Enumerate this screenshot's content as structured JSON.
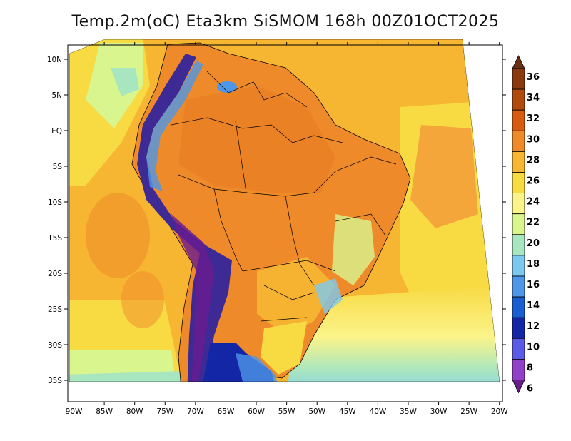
{
  "title": "Temp.2m(oC) Eta3km SiSMOM 168h 00Z01OCT2025",
  "map": {
    "lon_range": [
      -91,
      -19.5
    ],
    "lat_range": [
      -38,
      12
    ],
    "x_ticks": [
      "90W",
      "85W",
      "80W",
      "75W",
      "70W",
      "65W",
      "60W",
      "55W",
      "50W",
      "45W",
      "40W",
      "35W",
      "30W",
      "25W",
      "20W"
    ],
    "x_tick_values": [
      -90,
      -85,
      -80,
      -75,
      -70,
      -65,
      -60,
      -55,
      -50,
      -45,
      -40,
      -35,
      -30,
      -25,
      -20
    ],
    "y_ticks": [
      "10N",
      "5N",
      "EQ",
      "5S",
      "10S",
      "15S",
      "20S",
      "25S",
      "30S",
      "35S"
    ],
    "y_tick_values": [
      10,
      5,
      0,
      -5,
      -10,
      -15,
      -20,
      -25,
      -30,
      -35
    ]
  },
  "colorbar": {
    "labels": [
      "36",
      "34",
      "32",
      "30",
      "28",
      "26",
      "24",
      "22",
      "20",
      "18",
      "16",
      "14",
      "12",
      "10",
      "8",
      "6"
    ],
    "colors": [
      "#6b2e12",
      "#8b3a10",
      "#b04a0e",
      "#d85c10",
      "#ef8a2a",
      "#f6b632",
      "#f8da43",
      "#fbf48a",
      "#d8f58e",
      "#a8e6c0",
      "#7dc8f0",
      "#4e96e8",
      "#1a5fd1",
      "#1326a6",
      "#5a5ae6",
      "#9140c8",
      "#6a1c8e"
    ]
  },
  "colors": {
    "ocean_warm": "#f4a63a",
    "land_hot": "#ef8a2a",
    "andes_cold": "#3e2a94",
    "patagonia": "#1326a6"
  }
}
